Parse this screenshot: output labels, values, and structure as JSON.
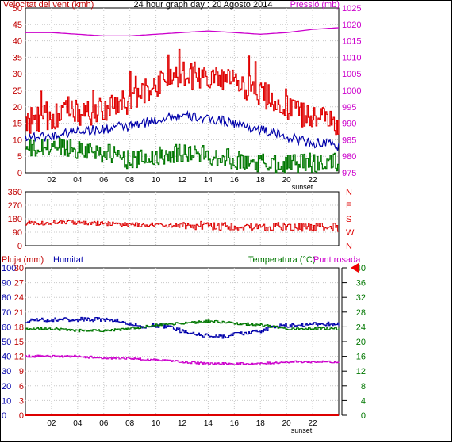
{
  "colors": {
    "wind_speed": "#e00000",
    "wind_gust": "#e00000",
    "wind_avg": "#007700",
    "wind_mean_blue": "#0000aa",
    "pressure": "#cc00cc",
    "direction": "#dd0000",
    "humidity": "#0000aa",
    "temperature": "#007700",
    "dew_point": "#cc00cc",
    "rain": "#dd0000",
    "marker": "#ee0000"
  },
  "chart_data": [
    {
      "type": "line",
      "title": "24 hour graph day : 20 Agosto 2014",
      "ylabel_left": "Velocitat del vent (kmh)",
      "ylabel_right": "Pressió (mb)",
      "ylim_left": [
        0,
        50
      ],
      "ylim_right": [
        975,
        1025
      ],
      "y_ticks_left": [
        "0",
        "5",
        "10",
        "15",
        "20",
        "25",
        "30",
        "35",
        "40",
        "45",
        "50"
      ],
      "y_ticks_right": [
        "975",
        "980",
        "985",
        "990",
        "995",
        "1000",
        "1005",
        "1010",
        "1015",
        "1020",
        "1025"
      ],
      "x_ticks": [
        "02",
        "04",
        "06",
        "08",
        "10",
        "12",
        "14",
        "16",
        "18",
        "20",
        "22"
      ],
      "x_note": "sunset",
      "x_note_hour": 20.5,
      "series": [
        {
          "name": "gust",
          "axis": "left",
          "base": [
            15,
            16,
            17,
            18,
            18,
            18,
            19,
            20,
            22,
            24,
            27,
            29,
            30,
            29,
            28,
            28,
            27,
            26,
            24,
            22,
            20,
            18,
            17,
            16,
            15
          ],
          "noise": 4
        },
        {
          "name": "avg",
          "axis": "left",
          "base": [
            11,
            11,
            11,
            12,
            13,
            13,
            13,
            14,
            14,
            15,
            16,
            17,
            17,
            17,
            16,
            16,
            15,
            14,
            13,
            12,
            11,
            10,
            9,
            9,
            8
          ],
          "noise": 1.5
        },
        {
          "name": "low",
          "axis": "left",
          "base": [
            7,
            7,
            8,
            8,
            7,
            7,
            6,
            5,
            4,
            4,
            5,
            6,
            6,
            6,
            5,
            5,
            4,
            3,
            3,
            3,
            3,
            3,
            3,
            3,
            3
          ],
          "noise": 3
        },
        {
          "name": "pressure",
          "axis": "right",
          "x": [
            0,
            2,
            4,
            6,
            8,
            10,
            12,
            14,
            16,
            18,
            20,
            22,
            24
          ],
          "values": [
            1017.5,
            1017.5,
            1017,
            1016.5,
            1016.5,
            1017,
            1017.5,
            1018,
            1017.5,
            1017,
            1017.5,
            1018.5,
            1019
          ]
        }
      ]
    },
    {
      "type": "line",
      "ylim": [
        0,
        360
      ],
      "y_ticks": [
        "0",
        "90",
        "180",
        "270",
        "360"
      ],
      "right_labels": [
        "N",
        "W",
        "S",
        "E",
        "N"
      ],
      "series": [
        {
          "name": "direction",
          "base": [
            150,
            150,
            155,
            160,
            155,
            150,
            148,
            145,
            142,
            140,
            138,
            136,
            135,
            134,
            132,
            130,
            130,
            128,
            127,
            126,
            125,
            124,
            124,
            123,
            123
          ],
          "noise": 18
        }
      ]
    },
    {
      "type": "line",
      "ylabel_rain": "Pluja (mm)",
      "ylabel_humidity": "Humitat",
      "ylabel_temperature": "Temperatura (°C)",
      "ylabel_dewpoint": "Punt rosada",
      "y_ticks_humidity": [
        "0",
        "10",
        "20",
        "30",
        "40",
        "50",
        "60",
        "70",
        "80",
        "90",
        "100"
      ],
      "y_ticks_rain": [
        "0",
        "3",
        "6",
        "9",
        "12",
        "15",
        "18",
        "21",
        "24",
        "27",
        "30"
      ],
      "y_ticks_temperature": [
        "0",
        "4",
        "8",
        "12",
        "16",
        "20",
        "24",
        "28",
        "32",
        "36",
        "40"
      ],
      "ylim_humidity": [
        0,
        100
      ],
      "ylim_temperature": [
        0,
        40
      ],
      "x_ticks": [
        "02",
        "04",
        "06",
        "08",
        "10",
        "12",
        "14",
        "16",
        "18",
        "20",
        "22"
      ],
      "x_note": "sunset",
      "marker_value": 40,
      "series": [
        {
          "name": "humidity",
          "x": [
            0,
            2,
            4,
            6,
            7,
            8,
            9,
            10,
            11,
            12,
            13,
            14,
            15,
            16,
            17,
            18,
            19,
            20,
            21,
            22,
            23,
            24
          ],
          "values": [
            64,
            65,
            65,
            65,
            64,
            62,
            60,
            61,
            60,
            57,
            55,
            54,
            53,
            55,
            56,
            57,
            60,
            61,
            61,
            62,
            62,
            62
          ]
        },
        {
          "name": "temperature",
          "x": [
            0,
            2,
            4,
            6,
            8,
            10,
            12,
            14,
            16,
            18,
            19,
            20,
            21,
            22,
            24
          ],
          "values": [
            23.5,
            23.5,
            23,
            23,
            23.5,
            24.5,
            25,
            25.5,
            25,
            24.5,
            24,
            23.5,
            23.5,
            23.5,
            23.5
          ]
        },
        {
          "name": "dew_point",
          "x": [
            0,
            2,
            4,
            6,
            8,
            10,
            12,
            14,
            16,
            18,
            20,
            22,
            24
          ],
          "values": [
            16,
            16,
            16,
            15.5,
            15.5,
            15,
            14.5,
            14,
            14,
            14,
            14.5,
            14.5,
            14.5
          ]
        },
        {
          "name": "rain",
          "x": [
            0,
            24
          ],
          "values": [
            0,
            0
          ]
        }
      ]
    }
  ]
}
